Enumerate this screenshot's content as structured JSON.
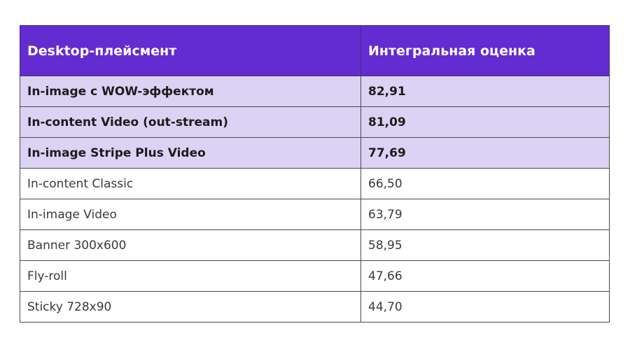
{
  "table": {
    "headers": [
      "Desktop-плейсмент",
      "Интегральная оценка"
    ],
    "rows": [
      {
        "placement": "In-image с WOW-эффектом",
        "score": "82,91",
        "highlighted": true
      },
      {
        "placement": "In-content Video (out-stream)",
        "score": "81,09",
        "highlighted": true
      },
      {
        "placement": "In-image Stripe Plus Video",
        "score": "77,69",
        "highlighted": true
      },
      {
        "placement": "In-content Classic",
        "score": "66,50",
        "highlighted": false
      },
      {
        "placement": "In-image Video",
        "score": "63,79",
        "highlighted": false
      },
      {
        "placement": "Banner 300x600",
        "score": "58,95",
        "highlighted": false
      },
      {
        "placement": "Fly-roll",
        "score": "47,66",
        "highlighted": false
      },
      {
        "placement": "Sticky 728x90",
        "score": "44,70",
        "highlighted": false
      }
    ]
  },
  "colors": {
    "header_bg": "#632cd0",
    "header_text": "#ffffff",
    "highlight_bg": "#dcd2f4",
    "border": "#4a4a4a"
  }
}
